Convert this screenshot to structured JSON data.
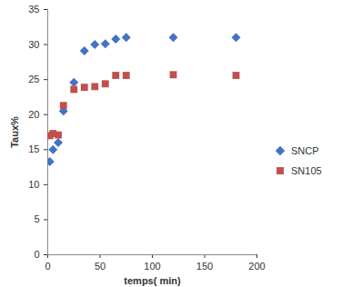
{
  "chart_data": {
    "type": "scatter",
    "x_label": "temps( min)",
    "y_label": "Taux%",
    "x": [
      2,
      5,
      10,
      15,
      25,
      35,
      45,
      55,
      65,
      75,
      120,
      180
    ],
    "series": [
      {
        "name": "SNCP",
        "color": "#4472c4",
        "marker": "diamond",
        "values": [
          13.3,
          15,
          16,
          20.5,
          24.6,
          29.1,
          30,
          30.1,
          30.8,
          31,
          31,
          31
        ]
      },
      {
        "name": "SN105",
        "color": "#c0504d",
        "marker": "square",
        "values": [
          17,
          17.3,
          17.1,
          21.3,
          23.6,
          23.9,
          24,
          24.4,
          25.6,
          25.6,
          25.7,
          25.6
        ]
      }
    ],
    "xlim": [
      0,
      200
    ],
    "xticks": [
      0,
      50,
      100,
      150,
      200
    ],
    "ylim": [
      0,
      35
    ],
    "yticks": [
      0,
      5,
      10,
      15,
      20,
      25,
      30,
      35
    ],
    "grid": false,
    "legend": "right"
  }
}
